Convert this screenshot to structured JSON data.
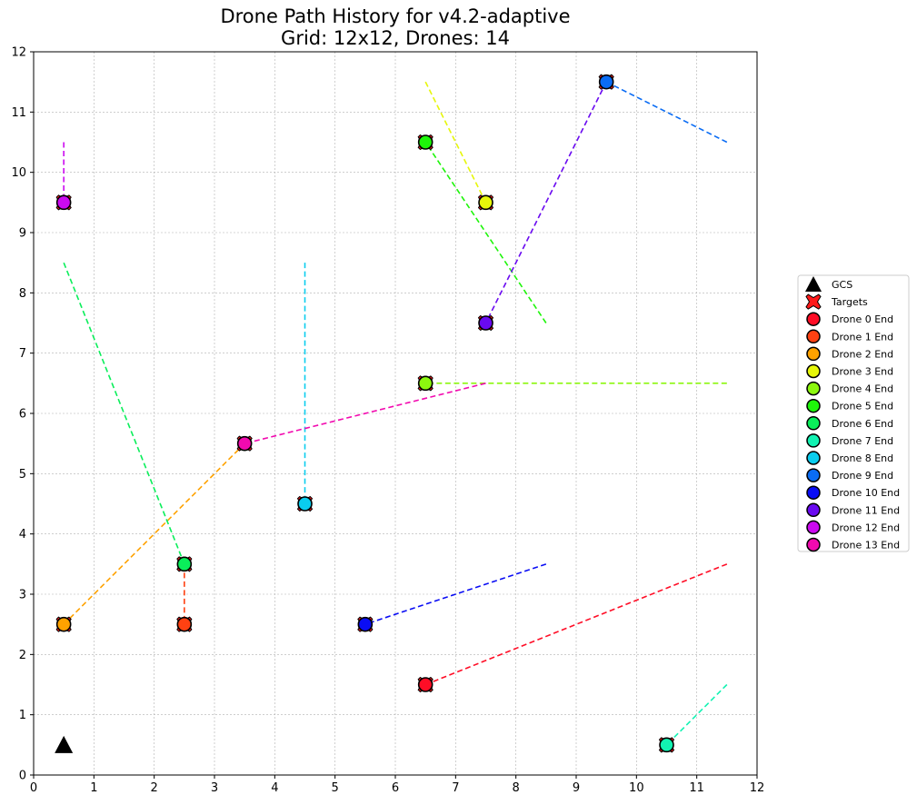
{
  "chart_data": {
    "type": "scatter",
    "title_line1": "Drone Path History for v4.2-adaptive",
    "title_line2": "Grid: 12x12, Drones: 14",
    "xlabel": "",
    "ylabel": "",
    "xlim": [
      0,
      12
    ],
    "ylim": [
      0,
      12
    ],
    "xticks": [
      0,
      1,
      2,
      3,
      4,
      5,
      6,
      7,
      8,
      9,
      10,
      11,
      12
    ],
    "yticks": [
      0,
      1,
      2,
      3,
      4,
      5,
      6,
      7,
      8,
      9,
      10,
      11,
      12
    ],
    "grid": true,
    "legend_position": "right",
    "gcs": {
      "label": "GCS",
      "x": 0.5,
      "y": 0.5
    },
    "targets": {
      "label": "Targets",
      "points": [
        [
          6.5,
          1.5
        ],
        [
          2.5,
          2.5
        ],
        [
          0.5,
          2.5
        ],
        [
          7.5,
          9.5
        ],
        [
          6.5,
          6.5
        ],
        [
          6.5,
          10.5
        ],
        [
          2.5,
          3.5
        ],
        [
          10.5,
          0.5
        ],
        [
          4.5,
          4.5
        ],
        [
          9.5,
          11.5
        ],
        [
          5.5,
          2.5
        ],
        [
          7.5,
          7.5
        ],
        [
          0.5,
          9.5
        ],
        [
          3.5,
          5.5
        ]
      ]
    },
    "series": [
      {
        "name": "Drone 0 End",
        "color": "#ff0d26",
        "path": [
          [
            11.5,
            3.5
          ],
          [
            6.5,
            1.5
          ]
        ]
      },
      {
        "name": "Drone 1 End",
        "color": "#ff4112",
        "path": [
          [
            2.5,
            3.5
          ],
          [
            2.5,
            2.5
          ]
        ]
      },
      {
        "name": "Drone 2 End",
        "color": "#ffa200",
        "path": [
          [
            3.5,
            5.5
          ],
          [
            0.5,
            2.5
          ]
        ]
      },
      {
        "name": "Drone 3 End",
        "color": "#e6f70a",
        "path": [
          [
            6.5,
            11.5
          ],
          [
            7.5,
            9.5
          ]
        ]
      },
      {
        "name": "Drone 4 End",
        "color": "#8cf70f",
        "path": [
          [
            11.5,
            6.5
          ],
          [
            6.5,
            6.5
          ]
        ]
      },
      {
        "name": "Drone 5 End",
        "color": "#1ef50a",
        "path": [
          [
            8.5,
            7.5
          ],
          [
            6.5,
            10.5
          ]
        ]
      },
      {
        "name": "Drone 6 End",
        "color": "#0aee5a",
        "path": [
          [
            0.5,
            8.5
          ],
          [
            2.5,
            3.5
          ]
        ]
      },
      {
        "name": "Drone 7 End",
        "color": "#12f2b2",
        "path": [
          [
            11.5,
            1.5
          ],
          [
            10.5,
            0.5
          ]
        ]
      },
      {
        "name": "Drone 8 End",
        "color": "#0acdee",
        "path": [
          [
            4.5,
            8.5
          ],
          [
            4.5,
            4.5
          ]
        ]
      },
      {
        "name": "Drone 9 End",
        "color": "#0a6cf4",
        "path": [
          [
            11.5,
            10.5
          ],
          [
            9.5,
            11.5
          ]
        ]
      },
      {
        "name": "Drone 10 End",
        "color": "#0a0df4",
        "path": [
          [
            8.5,
            3.5
          ],
          [
            5.5,
            2.5
          ]
        ]
      },
      {
        "name": "Drone 11 End",
        "color": "#6a0af0",
        "path": [
          [
            9.5,
            11.5
          ],
          [
            7.5,
            7.5
          ]
        ]
      },
      {
        "name": "Drone 12 End",
        "color": "#cc0af0",
        "path": [
          [
            0.5,
            10.5
          ],
          [
            0.5,
            9.5
          ]
        ]
      },
      {
        "name": "Drone 13 End",
        "color": "#f20aaf",
        "path": [
          [
            7.5,
            6.5
          ],
          [
            3.5,
            5.5
          ]
        ]
      }
    ]
  }
}
